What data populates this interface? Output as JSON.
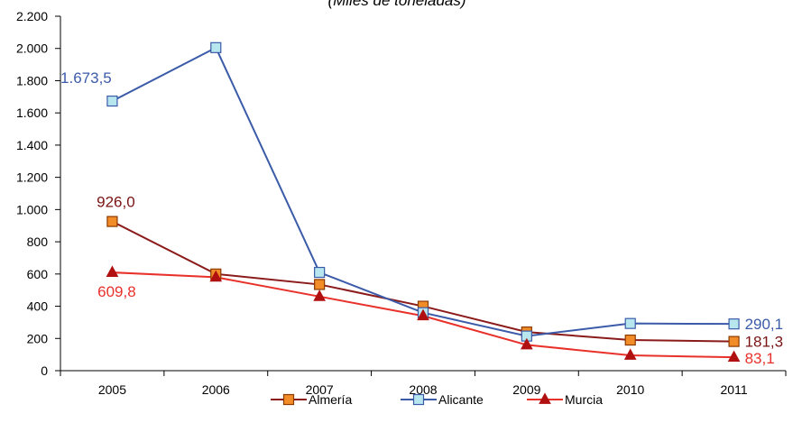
{
  "chart_data": {
    "type": "line",
    "title": "",
    "subtitle": "(Miles de toneladas)",
    "xlabel": "",
    "ylabel": "",
    "categories": [
      "2005",
      "2006",
      "2007",
      "2008",
      "2009",
      "2010",
      "2011"
    ],
    "ylim": [
      0,
      2200
    ],
    "yticks": [
      0,
      200,
      400,
      600,
      800,
      1000,
      1200,
      1400,
      1600,
      1800,
      2000,
      2200
    ],
    "ytick_labels": [
      "0",
      "200",
      "400",
      "600",
      "800",
      "1.000",
      "1.200",
      "1.400",
      "1.600",
      "1.800",
      "2.000",
      "2.200"
    ],
    "grid": false,
    "legend_position": "bottom",
    "series": [
      {
        "name": "Almería",
        "values": [
          926.0,
          600,
          535,
          400,
          240,
          190,
          181.3
        ],
        "line_color": "#8B1A1A",
        "marker": "square",
        "marker_fill": "#F28C28",
        "marker_stroke": "#8B3A00"
      },
      {
        "name": "Alicante",
        "values": [
          1673.5,
          2005,
          610,
          360,
          215,
          293,
          290.1
        ],
        "line_color": "#3B5BA9",
        "marker": "square",
        "marker_fill": "#B7E6EF",
        "marker_stroke": "#3B5BA9"
      },
      {
        "name": "Murcia",
        "values": [
          609.8,
          580,
          460,
          340,
          160,
          95,
          83.1
        ],
        "line_color": "#E8312A",
        "marker": "triangle",
        "marker_fill": "#B01010",
        "marker_stroke": "#B01010"
      }
    ],
    "annotations": [
      {
        "series": 1,
        "point": 0,
        "text": "1.673,5",
        "color": "#3B5BA9"
      },
      {
        "series": 0,
        "point": 0,
        "text": "926,0",
        "color": "#7A1414"
      },
      {
        "series": 2,
        "point": 0,
        "text": "609,8",
        "color": "#E8312A"
      },
      {
        "series": 1,
        "point": 6,
        "text": "290,1",
        "color": "#3B5BA9"
      },
      {
        "series": 0,
        "point": 6,
        "text": "181,3",
        "color": "#7A1414"
      },
      {
        "series": 2,
        "point": 6,
        "text": "83,1",
        "color": "#E8312A"
      }
    ]
  }
}
